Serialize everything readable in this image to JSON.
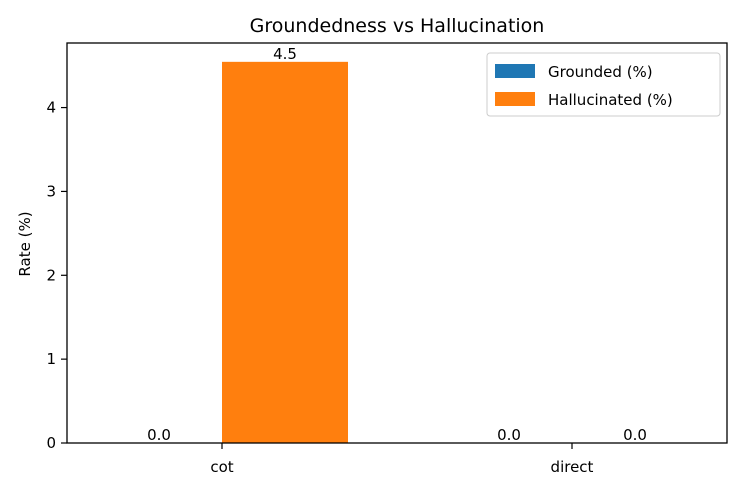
{
  "chart_data": {
    "type": "bar",
    "title": "Groundedness vs Hallucination",
    "xlabel": "",
    "ylabel": "Rate (%)",
    "categories": [
      "cot",
      "direct"
    ],
    "series": [
      {
        "name": "Grounded (%)",
        "values": [
          0.0,
          0.0
        ],
        "labels": [
          "0.0",
          "0.0"
        ],
        "color": "#1f77b4"
      },
      {
        "name": "Hallucinated (%)",
        "values": [
          4.5454,
          0.0
        ],
        "labels": [
          "4.5",
          "0.0"
        ],
        "color": "#ff7f0e"
      }
    ],
    "ylim": [
      0,
      4.77
    ],
    "yticks": [
      0,
      1,
      2,
      3,
      4
    ],
    "grid": false,
    "legend": "top-right"
  }
}
